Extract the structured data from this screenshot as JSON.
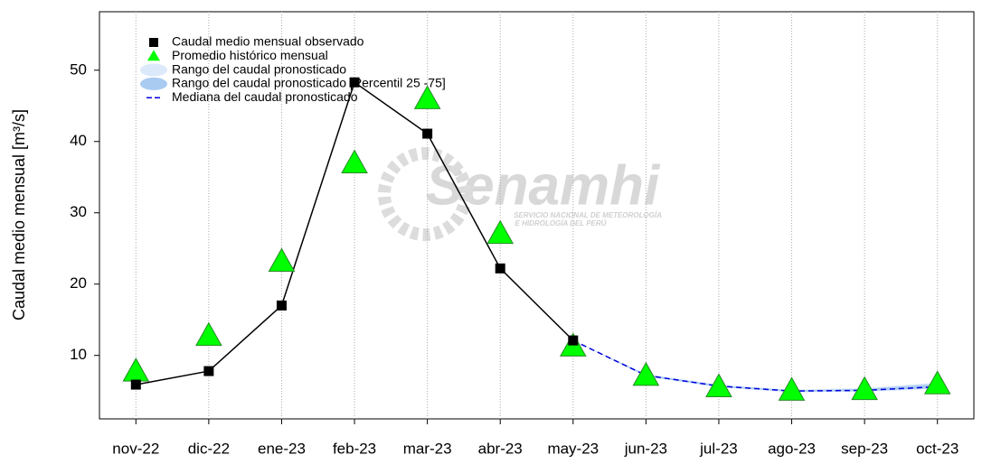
{
  "chart_data": {
    "type": "line",
    "y_label": "Caudal medio mensual  [m³/s]",
    "watermark": "Senamhi",
    "watermark_sub": [
      "SERVICIO NACIONAL DE METEOROLOGÍA",
      "E HIDROLOGÍA DEL PERÚ"
    ],
    "categories": [
      "nov-22",
      "dic-22",
      "ene-23",
      "feb-23",
      "mar-23",
      "abr-23",
      "may-23",
      "jun-23",
      "jul-23",
      "ago-23",
      "sep-23",
      "oct-23"
    ],
    "ylim": [
      1.1,
      58.2
    ],
    "yticks": [
      10,
      20,
      30,
      40,
      50
    ],
    "grid": true,
    "legend": "upper left",
    "series": [
      {
        "name": "Caudal medio mensual observado",
        "color": "#000000",
        "kind": "observed",
        "values": [
          5.9,
          7.8,
          17,
          48.3,
          41.1,
          22.2,
          12.1,
          null,
          null,
          null,
          null,
          null
        ]
      },
      {
        "name": "Promedio histórico mensual",
        "color": "#00ff00",
        "kind": "triangle",
        "values": [
          7.8,
          12.8,
          23.2,
          37,
          46,
          27.1,
          11.3,
          7.2,
          5.6,
          5.1,
          5.2,
          6
        ]
      },
      {
        "name": "Rango del caudal pronosticado",
        "color": "#dbe9fb",
        "kind": "band",
        "low": [
          null,
          null,
          null,
          null,
          null,
          null,
          12.1,
          7.0,
          5.5,
          4.8,
          4.9,
          5.3
        ],
        "high": [
          null,
          null,
          null,
          null,
          null,
          null,
          12.1,
          7.4,
          5.9,
          5.2,
          5.4,
          6.2
        ]
      },
      {
        "name": "Rango del caudal pronosticado [Percentil 25 -75]",
        "color": "#a9cbf2",
        "kind": "band",
        "low": [
          null,
          null,
          null,
          null,
          null,
          null,
          12.1,
          7.1,
          5.6,
          4.9,
          5.0,
          5.4
        ],
        "high": [
          null,
          null,
          null,
          null,
          null,
          null,
          12.1,
          7.3,
          5.8,
          5.1,
          5.3,
          6.0
        ]
      },
      {
        "name": "Mediana del caudal pronosticado",
        "color": "#0000dd",
        "kind": "dashed",
        "values": [
          null,
          null,
          null,
          null,
          null,
          null,
          12.1,
          7.2,
          5.7,
          5.0,
          5.1,
          5.6
        ]
      }
    ]
  }
}
